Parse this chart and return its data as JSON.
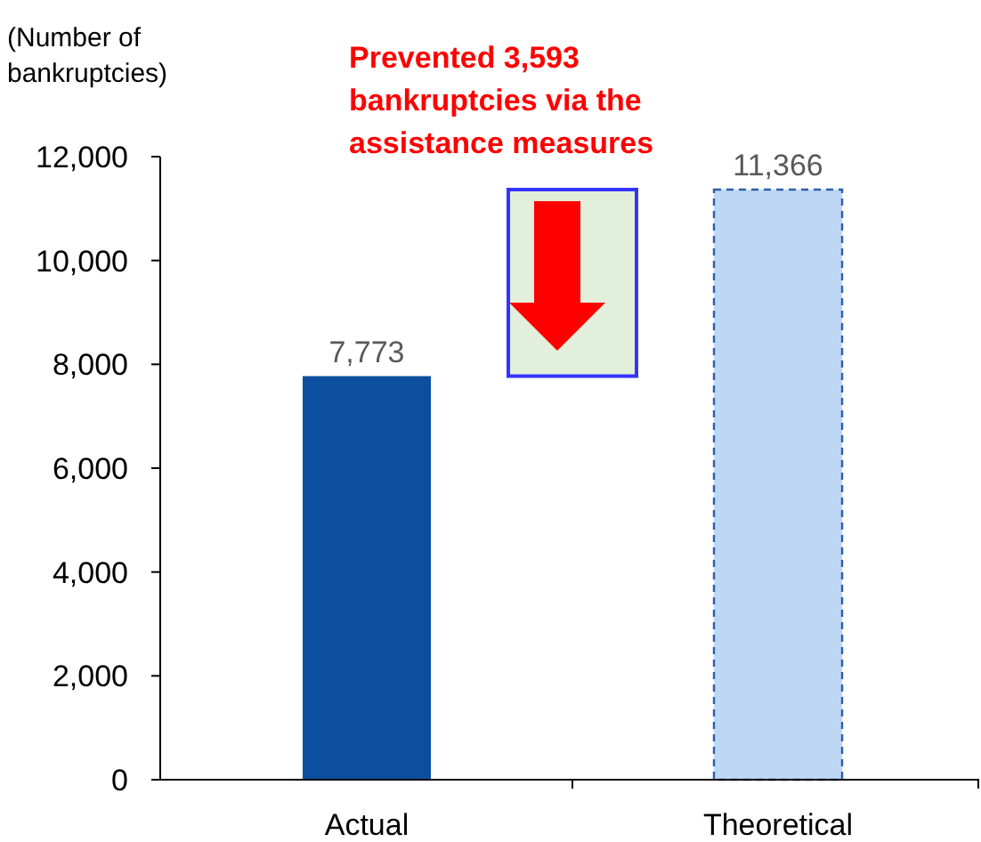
{
  "chart_data": {
    "type": "bar",
    "ylabel": "(Number of bankruptcies)",
    "categories": [
      "Actual",
      null,
      "Theoretical"
    ],
    "values": [
      7773,
      3593,
      11366
    ],
    "base": [
      0,
      7773,
      0
    ],
    "colors": [
      "#0b4f9e",
      "#e2efda",
      "#bdd7f5"
    ],
    "value_labels": [
      "7,773",
      null,
      "11,366"
    ],
    "annotations": [
      "Prevented 3,593 bankruptcies via the assistance measures"
    ],
    "ylim": [
      0,
      12000
    ],
    "yticks": [
      0,
      {
        "value": 2000,
        "label": "2,000"
      },
      {
        "value": 4000,
        "label": "4,000"
      },
      {
        "value": 6000,
        "label": "6,000"
      },
      {
        "value": 8000,
        "label": "8,000"
      },
      {
        "value": 10000,
        "label": "10,000"
      },
      {
        "value": 12000,
        "label": "12,000"
      }
    ],
    "grid": false
  }
}
